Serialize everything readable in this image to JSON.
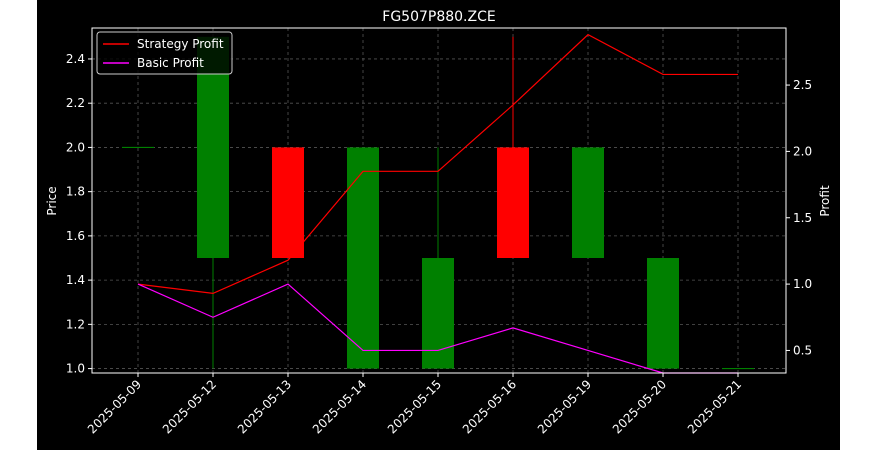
{
  "chart_data": {
    "type": "candlestick",
    "title": "FG507P880.ZCE",
    "ylabel_left": "Price",
    "ylabel_right": "Profit",
    "x": [
      "2025-05-09",
      "2025-05-12",
      "2025-05-13",
      "2025-05-14",
      "2025-05-15",
      "2025-05-16",
      "2025-05-19",
      "2025-05-20",
      "2025-05-21"
    ],
    "ylim_left": [
      0.98,
      2.54
    ],
    "ylim_right": [
      0.33,
      2.93
    ],
    "yticks_left": [
      "1.0",
      "1.2",
      "1.4",
      "1.6",
      "1.8",
      "2.0",
      "2.2",
      "2.4"
    ],
    "yticks_right": [
      "0.5",
      "1.0",
      "1.5",
      "2.0",
      "2.5"
    ],
    "grid": true,
    "legend_position": "top-left",
    "candles": [
      {
        "open": 2.0,
        "high": 2.0,
        "low": 2.0,
        "close": 2.0
      },
      {
        "open": 1.5,
        "high": 2.5,
        "low": 1.0,
        "close": 2.5
      },
      {
        "open": 2.0,
        "high": 2.0,
        "low": 1.5,
        "close": 1.5
      },
      {
        "open": 1.0,
        "high": 2.0,
        "low": 1.0,
        "close": 2.0
      },
      {
        "open": 1.0,
        "high": 2.0,
        "low": 1.0,
        "close": 1.5
      },
      {
        "open": 2.0,
        "high": 2.5,
        "low": 1.5,
        "close": 1.5
      },
      {
        "open": 1.5,
        "high": 2.0,
        "low": 1.5,
        "close": 2.0
      },
      {
        "open": 1.0,
        "high": 1.5,
        "low": 1.0,
        "close": 1.5
      },
      {
        "open": 1.0,
        "high": 1.0,
        "low": 1.0,
        "close": 1.0
      }
    ],
    "series": [
      {
        "name": "Strategy Profit",
        "color": "#ff0000",
        "values": [
          1.0,
          0.93,
          1.18,
          1.85,
          1.85,
          2.35,
          2.88,
          2.58,
          2.58
        ]
      },
      {
        "name": "Basic Profit",
        "color": "#ff00ff",
        "values": [
          1.0,
          0.75,
          1.0,
          0.5,
          0.5,
          0.67,
          0.5,
          0.33,
          0.33
        ]
      }
    ],
    "colors": {
      "up": "#008000",
      "down": "#ff0000",
      "background": "#000000",
      "text": "#ffffff",
      "grid": "#555555"
    }
  }
}
